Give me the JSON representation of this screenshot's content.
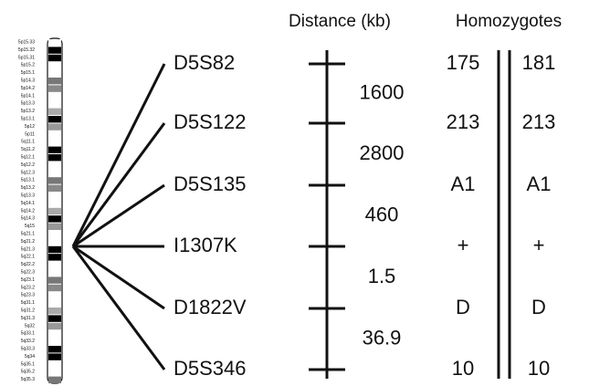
{
  "headers": {
    "distance": "Distance (kb)",
    "homozygotes": "Homozygotes"
  },
  "bands": [
    "5p15.33",
    "5p15.32",
    "5p15.31",
    "5p15.2",
    "5p15.1",
    "5p14.3",
    "5p14.2",
    "5p14.1",
    "5p13.3",
    "5p13.2",
    "5p13.1",
    "5p12",
    "5p11",
    "5q11.1",
    "5q11.2",
    "5q12.1",
    "5q12.2",
    "5q12.3",
    "5q13.1",
    "5q13.2",
    "5q13.3",
    "5q14.1",
    "5q14.2",
    "5q14.3",
    "5q15",
    "5q21.1",
    "5q21.2",
    "5q21.3",
    "5q22.1",
    "5q22.2",
    "5q22.3",
    "5q23.1",
    "5q23.2",
    "5q23.3",
    "5q31.1",
    "5q31.2",
    "5q31.3",
    "5q32",
    "5q33.1",
    "5q33.2",
    "5q33.3",
    "5q34",
    "5q35.1",
    "5q35.2",
    "5q35.3"
  ],
  "markers": [
    {
      "label": "D5S82",
      "left": "175",
      "right": "181"
    },
    {
      "label": "D5S122",
      "left": "213",
      "right": "213"
    },
    {
      "label": "D5S135",
      "left": "A1",
      "right": "A1"
    },
    {
      "label": "I1307K",
      "left": "+",
      "right": "+"
    },
    {
      "label": "D1822V",
      "left": "D",
      "right": "D"
    },
    {
      "label": "D5S346",
      "left": "10",
      "right": "10"
    }
  ],
  "distances": [
    "1600",
    "2800",
    "460",
    "1.5",
    "36.9"
  ]
}
